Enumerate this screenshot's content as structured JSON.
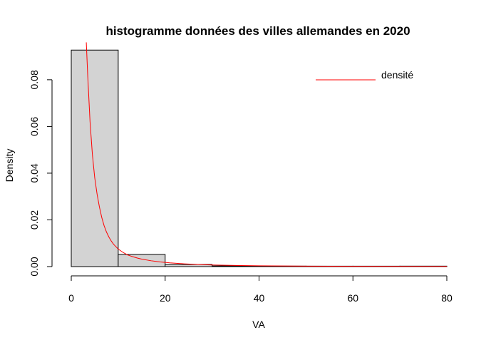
{
  "chart_data": {
    "type": "bar",
    "title": "histogramme données des villes allemandes en 2020",
    "xlabel": "VA",
    "ylabel": "Density",
    "xlim": [
      0,
      80
    ],
    "ylim": [
      0,
      0.094
    ],
    "x_ticks": [
      "0",
      "20",
      "40",
      "60",
      "80"
    ],
    "y_ticks": [
      "0.00",
      "0.02",
      "0.04",
      "0.06",
      "0.08"
    ],
    "bins": [
      {
        "start": 0,
        "end": 10,
        "density": 0.0927
      },
      {
        "start": 10,
        "end": 20,
        "density": 0.0052
      },
      {
        "start": 20,
        "end": 30,
        "density": 0.0009
      },
      {
        "start": 30,
        "end": 40,
        "density": 0.0003
      },
      {
        "start": 40,
        "end": 50,
        "density": 0.0002
      },
      {
        "start": 50,
        "end": 60,
        "density": 0.0
      },
      {
        "start": 60,
        "end": 70,
        "density": 0.0
      },
      {
        "start": 70,
        "end": 80,
        "density": 0.0002
      }
    ],
    "bar_fill": "#d3d3d3",
    "bar_stroke": "#000000",
    "density_curve": {
      "name": "densité",
      "color": "#ff0000",
      "points": [
        [
          3.2,
          0.096
        ],
        [
          3.5,
          0.082
        ],
        [
          4.0,
          0.062
        ],
        [
          4.5,
          0.048
        ],
        [
          5.0,
          0.038
        ],
        [
          5.5,
          0.031
        ],
        [
          6.0,
          0.0255
        ],
        [
          6.5,
          0.021
        ],
        [
          7.0,
          0.0175
        ],
        [
          7.5,
          0.0148
        ],
        [
          8.0,
          0.0127
        ],
        [
          8.5,
          0.011
        ],
        [
          9.0,
          0.0096
        ],
        [
          10.0,
          0.0075
        ],
        [
          11.0,
          0.0061
        ],
        [
          12.0,
          0.005
        ],
        [
          13.0,
          0.0043
        ],
        [
          14.0,
          0.0037
        ],
        [
          15.0,
          0.0032
        ],
        [
          17.0,
          0.0025
        ],
        [
          19.0,
          0.002
        ],
        [
          21.0,
          0.0016
        ],
        [
          24.0,
          0.0012
        ],
        [
          27.0,
          0.0009
        ],
        [
          30.0,
          0.0007
        ],
        [
          35.0,
          0.0005
        ],
        [
          40.0,
          0.00035
        ],
        [
          50.0,
          0.0002
        ],
        [
          60.0,
          0.00012
        ],
        [
          70.0,
          8e-05
        ],
        [
          80.0,
          5e-05
        ]
      ]
    },
    "legend": {
      "position": "top-right",
      "entries": [
        "densité"
      ]
    },
    "grid": false
  }
}
